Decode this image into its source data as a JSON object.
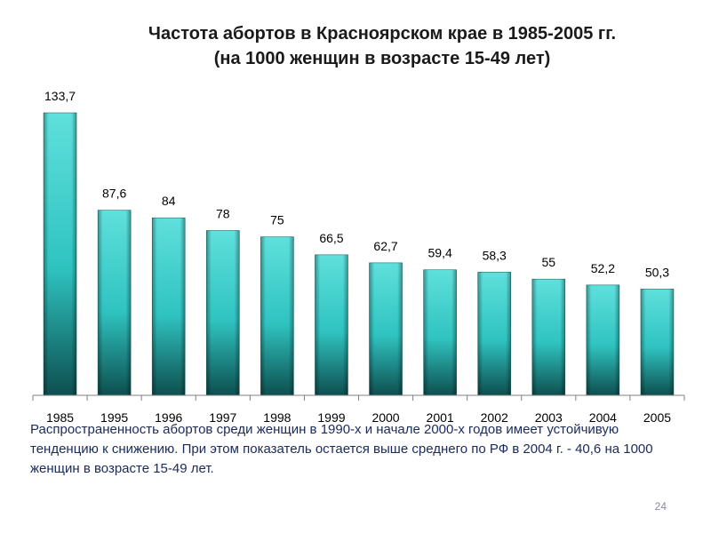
{
  "slide": {
    "title_line1": "Частота абортов в Красноярском крае в 1985-2005 гг.",
    "title_line2": "(на 1000 женщин в возрасте 15-49 лет)",
    "note": "Распространенность абортов среди женщин в 1990-х и начале 2000-х годов имеет устойчивую тенденцию к снижению. При этом показатель остается выше среднего по РФ в 2004 г. - 40,6 на 1000 женщин в возрасте 15-49 лет.",
    "page_number": "24"
  },
  "colors": {
    "bar_dark": "#0d4f4f",
    "bar_mid": "#2fc3c0",
    "bar_light": "#5fe0dc",
    "axis": "#808080"
  },
  "chart_data": {
    "type": "bar",
    "title": "Частота абортов в Красноярском крае в 1985-2005 гг. (на 1000 женщин в возрасте 15-49 лет)",
    "categories": [
      "1985",
      "1995",
      "1996",
      "1997",
      "1998",
      "1999",
      "2000",
      "2001",
      "2002",
      "2003",
      "2004",
      "2005"
    ],
    "values": [
      133.7,
      87.6,
      84,
      78,
      75,
      66.5,
      62.7,
      59.4,
      58.3,
      55,
      52.2,
      50.3
    ],
    "data_labels": [
      "133,7",
      "87,6",
      "84",
      "78",
      "75",
      "66,5",
      "62,7",
      "59,4",
      "58,3",
      "55",
      "52,2",
      "50,3"
    ],
    "xlabel": "",
    "ylabel": "",
    "ylim": [
      0,
      133.7
    ],
    "grid": false,
    "legend": "none"
  }
}
